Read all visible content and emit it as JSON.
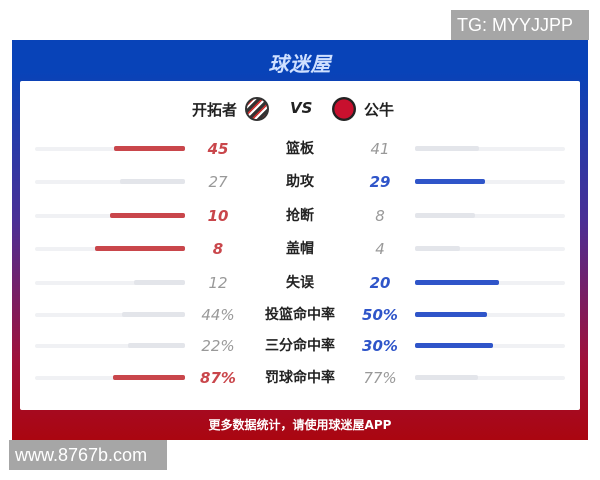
{
  "watermark_top": "TG: MYYJJPP",
  "watermark_bottom": "www.8767b.com",
  "brand": "球迷屋",
  "teams": {
    "home": "开拓者",
    "away": "公牛",
    "vs": "VS",
    "home_logo": "rip-city-logo",
    "away_logo": "bulls-logo"
  },
  "colors": {
    "home": "#c9464b",
    "away": "#2f55c9",
    "neutral": "#e3e5ea"
  },
  "stats": [
    {
      "label": "篮板",
      "home": "45",
      "away": "41",
      "home_val": 45,
      "away_val": 41,
      "leader": "home"
    },
    {
      "label": "助攻",
      "home": "27",
      "away": "29",
      "home_val": 27,
      "away_val": 29,
      "leader": "away"
    },
    {
      "label": "抢断",
      "home": "10",
      "away": "8",
      "home_val": 10,
      "away_val": 8,
      "leader": "home"
    },
    {
      "label": "盖帽",
      "home": "8",
      "away": "4",
      "home_val": 8,
      "away_val": 4,
      "leader": "home"
    },
    {
      "label": "失误",
      "home": "12",
      "away": "20",
      "home_val": 12,
      "away_val": 20,
      "leader": "away"
    },
    {
      "label": "投篮命中率",
      "home": "44%",
      "away": "50%",
      "home_val": 44,
      "away_val": 50,
      "leader": "away"
    },
    {
      "label": "三分命中率",
      "home": "22%",
      "away": "30%",
      "home_val": 22,
      "away_val": 30,
      "leader": "away"
    },
    {
      "label": "罚球命中率",
      "home": "87%",
      "away": "77%",
      "home_val": 87,
      "away_val": 77,
      "leader": "home"
    }
  ],
  "footer": "更多数据统计，请使用球迷屋APP"
}
